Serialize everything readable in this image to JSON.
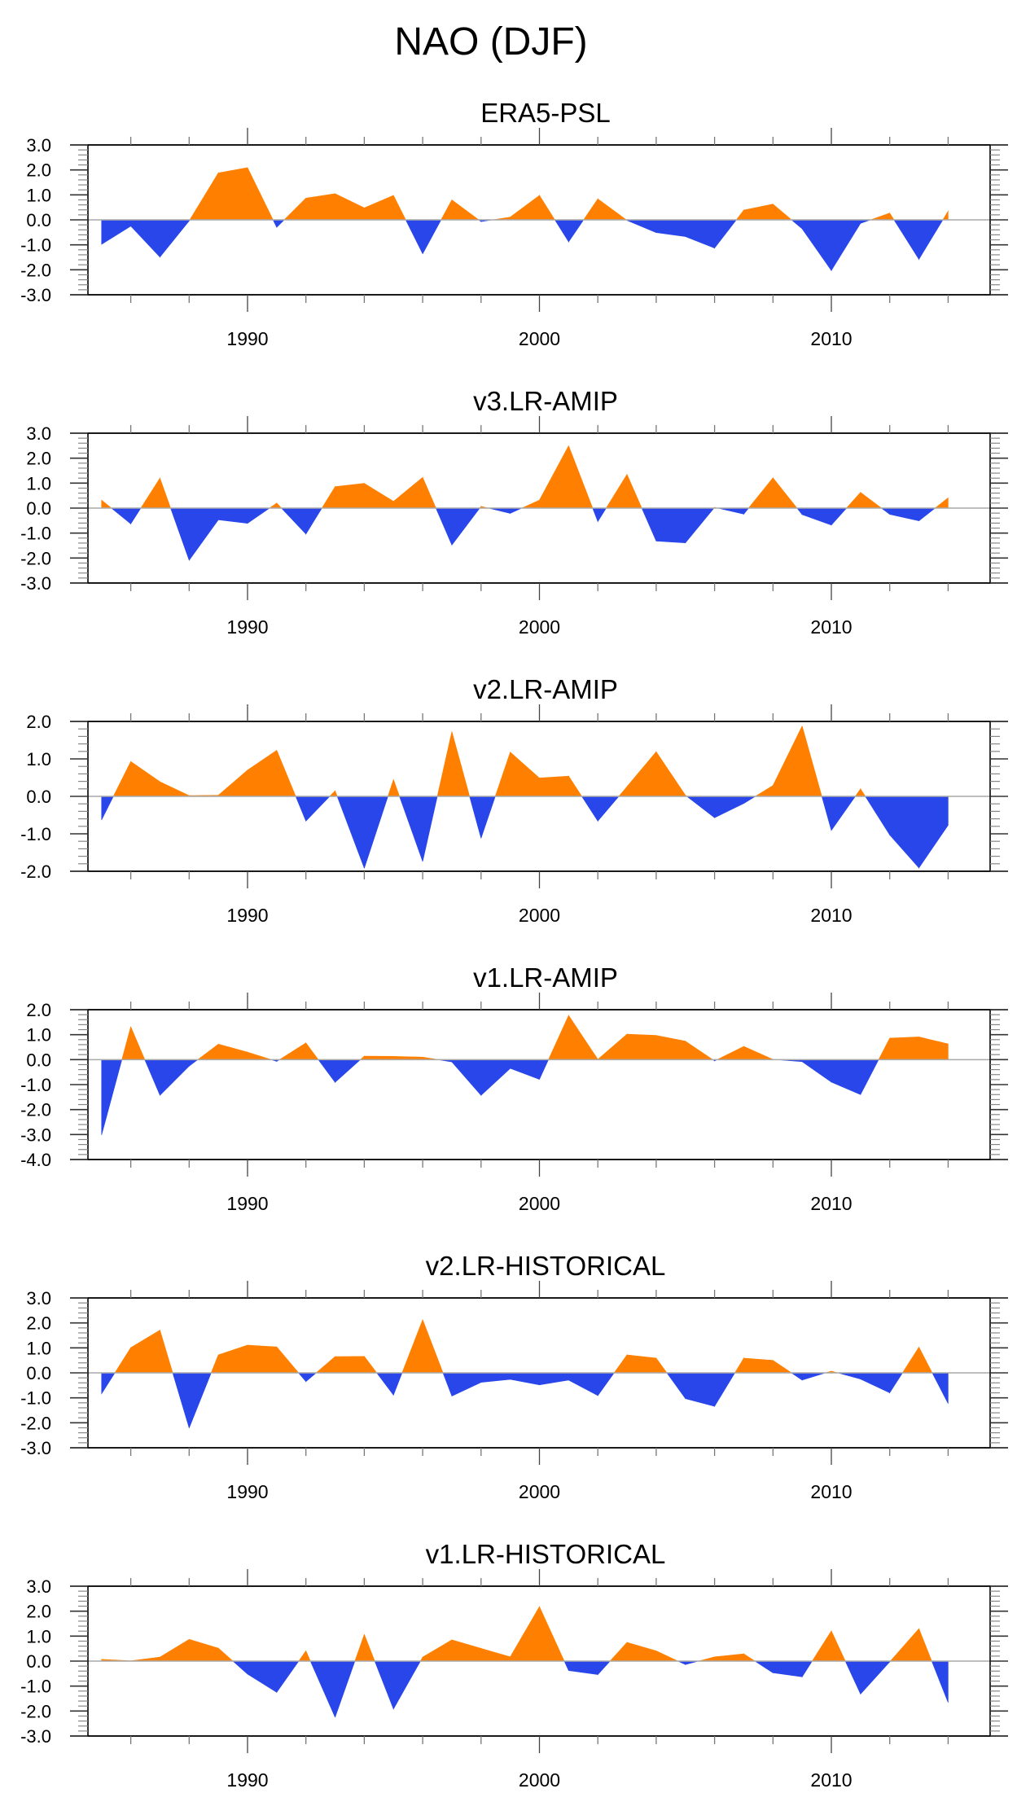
{
  "chart_data": {
    "title": "NAO (DJF)",
    "type": "area",
    "colors": {
      "positive": "#FF8000",
      "negative": "#2846EA",
      "zero_line": "#A9A9A9",
      "axis": "#000000"
    },
    "x": [
      1985,
      1986,
      1987,
      1988,
      1989,
      1990,
      1991,
      1992,
      1993,
      1994,
      1995,
      1996,
      1997,
      1998,
      1999,
      2000,
      2001,
      2002,
      2003,
      2004,
      2005,
      2006,
      2007,
      2008,
      2009,
      2010,
      2011,
      2012,
      2013,
      2014
    ],
    "xlim": [
      1983.7,
      2016.0
    ],
    "xticks": [
      1990,
      2000,
      2010
    ],
    "xtick_labels": [
      "1990",
      "2000",
      "2010"
    ],
    "panels": [
      {
        "title": "ERA5-PSL",
        "ylim": [
          -3.0,
          3.0
        ],
        "yticks": [
          3.0,
          2.0,
          1.0,
          0.0,
          -1.0,
          -2.0,
          -3.0
        ],
        "ytick_labels": [
          "3.0",
          "2.0",
          "1.0",
          "0.0",
          "-1.0",
          "-2.0",
          "-3.0"
        ],
        "values": [
          -0.98,
          -0.25,
          -1.49,
          -0.04,
          1.88,
          2.09,
          -0.3,
          0.87,
          1.05,
          0.48,
          0.98,
          -1.36,
          0.8,
          -0.07,
          0.11,
          0.98,
          -0.88,
          0.84,
          -0.02,
          -0.51,
          -0.67,
          -1.13,
          0.39,
          0.63,
          -0.36,
          -2.03,
          -0.14,
          0.27,
          -1.58,
          0.35
        ]
      },
      {
        "title": "v3.LR-AMIP",
        "ylim": [
          -3.0,
          3.0
        ],
        "yticks": [
          3.0,
          2.0,
          1.0,
          0.0,
          -1.0,
          -2.0,
          -3.0
        ],
        "ytick_labels": [
          "3.0",
          "2.0",
          "1.0",
          "0.0",
          "-1.0",
          "-2.0",
          "-3.0"
        ],
        "values": [
          0.32,
          -0.63,
          1.2,
          -2.09,
          -0.47,
          -0.61,
          0.2,
          -1.04,
          0.86,
          0.99,
          0.27,
          1.23,
          -1.48,
          0.07,
          -0.21,
          0.32,
          2.5,
          -0.54,
          1.35,
          -1.32,
          -1.39,
          0.03,
          -0.24,
          1.21,
          -0.26,
          -0.68,
          0.63,
          -0.25,
          -0.51,
          0.41
        ]
      },
      {
        "title": "v2.LR-AMIP",
        "ylim": [
          -2.0,
          2.0
        ],
        "yticks": [
          2.0,
          1.0,
          0.0,
          -1.0,
          -2.0
        ],
        "ytick_labels": [
          "2.0",
          "1.0",
          "0.0",
          "-1.0",
          "-2.0"
        ],
        "values": [
          -0.63,
          0.93,
          0.39,
          0.02,
          0.03,
          0.7,
          1.23,
          -0.66,
          0.15,
          -1.92,
          0.45,
          -1.74,
          1.73,
          -1.12,
          1.18,
          0.49,
          0.54,
          -0.66,
          0.26,
          1.19,
          0.03,
          -0.57,
          -0.19,
          0.29,
          1.88,
          -0.91,
          0.2,
          -1.03,
          -1.91,
          -0.77
        ]
      },
      {
        "title": "v1.LR-AMIP",
        "ylim": [
          -4.0,
          2.0
        ],
        "yticks": [
          2.0,
          1.0,
          0.0,
          -1.0,
          -2.0,
          -3.0,
          -4.0
        ],
        "ytick_labels": [
          "2.0",
          "1.0",
          "0.0",
          "-1.0",
          "-2.0",
          "-3.0",
          "-4.0"
        ],
        "values": [
          -3.02,
          1.32,
          -1.43,
          -0.26,
          0.62,
          0.3,
          -0.07,
          0.67,
          -0.91,
          0.14,
          0.13,
          0.1,
          -0.09,
          -1.43,
          -0.35,
          -0.79,
          1.77,
          0.01,
          1.02,
          0.97,
          0.74,
          -0.05,
          0.53,
          0.01,
          -0.08,
          -0.9,
          -1.4,
          0.86,
          0.91,
          0.63
        ]
      },
      {
        "title": "v2.LR-HISTORICAL",
        "ylim": [
          -3.0,
          3.0
        ],
        "yticks": [
          3.0,
          2.0,
          1.0,
          0.0,
          -1.0,
          -2.0,
          -3.0
        ],
        "ytick_labels": [
          "3.0",
          "2.0",
          "1.0",
          "0.0",
          "-1.0",
          "-2.0",
          "-3.0"
        ],
        "values": [
          -0.84,
          1.01,
          1.71,
          -2.21,
          0.72,
          1.11,
          1.04,
          -0.35,
          0.65,
          0.66,
          -0.89,
          2.13,
          -0.93,
          -0.38,
          -0.26,
          -0.48,
          -0.29,
          -0.91,
          0.72,
          0.59,
          -1.03,
          -1.34,
          0.59,
          0.5,
          -0.29,
          0.07,
          -0.25,
          -0.8,
          1.03,
          -1.23
        ]
      },
      {
        "title": "v1.LR-HISTORICAL",
        "ylim": [
          -3.0,
          3.0
        ],
        "yticks": [
          3.0,
          2.0,
          1.0,
          0.0,
          -1.0,
          -2.0,
          -3.0
        ],
        "ytick_labels": [
          "3.0",
          "2.0",
          "1.0",
          "0.0",
          "-1.0",
          "-2.0",
          "-3.0"
        ],
        "values": [
          0.07,
          0.01,
          0.16,
          0.87,
          0.52,
          -0.52,
          -1.25,
          0.41,
          -2.25,
          1.07,
          -1.92,
          0.16,
          0.85,
          0.51,
          0.17,
          2.18,
          -0.38,
          -0.54,
          0.75,
          0.41,
          -0.14,
          0.17,
          0.29,
          -0.47,
          -0.63,
          1.21,
          -1.32,
          -0.03,
          1.3,
          -1.66
        ]
      }
    ]
  }
}
